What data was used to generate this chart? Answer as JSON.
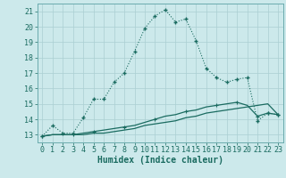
{
  "xlabel": "Humidex (Indice chaleur)",
  "background_color": "#cce9eb",
  "grid_color": "#aacfd2",
  "line_color": "#1a6b60",
  "xlim": [
    -0.5,
    23.5
  ],
  "ylim": [
    12.5,
    21.5
  ],
  "yticks": [
    13,
    14,
    15,
    16,
    17,
    18,
    19,
    20,
    21
  ],
  "xticks": [
    0,
    1,
    2,
    3,
    4,
    5,
    6,
    7,
    8,
    9,
    10,
    11,
    12,
    13,
    14,
    15,
    16,
    17,
    18,
    19,
    20,
    21,
    22,
    23
  ],
  "line1_x": [
    0,
    1,
    2,
    3,
    4,
    5,
    6,
    7,
    8,
    9,
    10,
    11,
    12,
    13,
    14,
    15,
    16,
    17,
    18,
    19,
    20,
    21,
    22,
    23
  ],
  "line1_y": [
    12.9,
    13.6,
    13.1,
    13.1,
    14.1,
    15.3,
    15.3,
    16.4,
    17.0,
    18.4,
    19.9,
    20.7,
    21.1,
    20.3,
    20.5,
    19.1,
    17.3,
    16.7,
    16.4,
    16.6,
    16.7,
    13.9,
    14.4,
    14.3
  ],
  "line2_x": [
    0,
    1,
    2,
    3,
    4,
    5,
    6,
    7,
    8,
    9,
    10,
    11,
    12,
    13,
    14,
    15,
    16,
    17,
    18,
    19,
    20,
    21,
    22,
    23
  ],
  "line2_y": [
    12.9,
    13.0,
    13.0,
    13.0,
    13.0,
    13.1,
    13.1,
    13.2,
    13.3,
    13.4,
    13.6,
    13.7,
    13.8,
    13.9,
    14.1,
    14.2,
    14.4,
    14.5,
    14.6,
    14.7,
    14.8,
    14.9,
    15.0,
    14.3
  ],
  "line3_x": [
    0,
    1,
    2,
    3,
    4,
    5,
    6,
    7,
    8,
    9,
    10,
    11,
    12,
    13,
    14,
    15,
    16,
    17,
    18,
    19,
    20,
    21,
    22,
    23
  ],
  "line3_y": [
    12.9,
    13.0,
    13.0,
    13.0,
    13.1,
    13.2,
    13.3,
    13.4,
    13.5,
    13.6,
    13.8,
    14.0,
    14.2,
    14.3,
    14.5,
    14.6,
    14.8,
    14.9,
    15.0,
    15.1,
    14.9,
    14.2,
    14.4,
    14.3
  ],
  "tick_fontsize": 6,
  "xlabel_fontsize": 7
}
